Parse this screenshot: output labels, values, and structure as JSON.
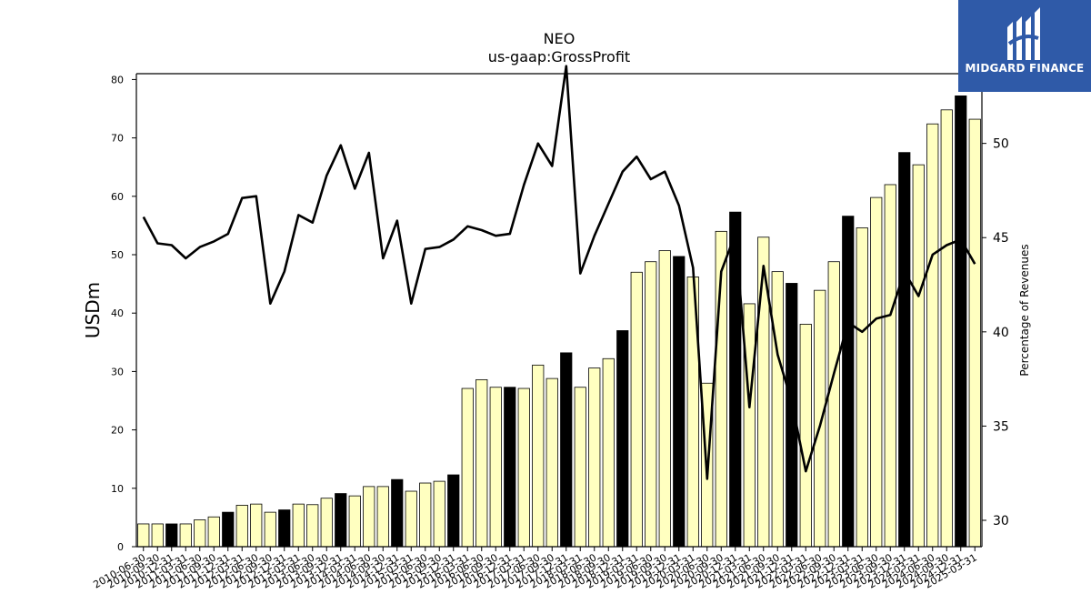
{
  "chart_data": {
    "type": "bar",
    "title": "NEO",
    "subtitle": "us-gaap:GrossProfit",
    "ylabel": "USDm",
    "y2label": "Percentage of Revenues",
    "ylim": [
      0,
      81
    ],
    "y2lim": [
      28.6,
      53.7
    ],
    "yticks": [
      0,
      10,
      20,
      30,
      40,
      50,
      60,
      70,
      80
    ],
    "y2ticks": [
      30,
      35,
      40,
      45,
      50
    ],
    "categories": [
      "2010-06-30",
      "2010-09-30",
      "2010-12-31",
      "2011-03-31",
      "2011-06-30",
      "2011-09-30",
      "2011-12-31",
      "2012-03-31",
      "2012-06-30",
      "2012-09-30",
      "2012-12-31",
      "2013-03-31",
      "2013-06-30",
      "2013-09-30",
      "2013-12-31",
      "2014-03-31",
      "2014-06-30",
      "2014-09-30",
      "2014-12-31",
      "2015-03-31",
      "2015-06-30",
      "2015-09-30",
      "2015-12-31",
      "2016-03-31",
      "2016-06-30",
      "2016-09-30",
      "2016-12-31",
      "2017-03-31",
      "2017-06-30",
      "2017-09-30",
      "2017-12-31",
      "2018-03-31",
      "2018-06-30",
      "2018-09-30",
      "2018-12-31",
      "2019-03-31",
      "2019-06-30",
      "2019-09-30",
      "2019-12-31",
      "2020-03-31",
      "2020-06-30",
      "2020-09-30",
      "2020-12-31",
      "2021-03-31",
      "2021-06-30",
      "2021-09-30",
      "2021-12-31",
      "2022-03-31",
      "2022-06-30",
      "2022-09-30",
      "2022-12-31",
      "2023-03-31",
      "2023-06-30",
      "2023-09-30",
      "2023-12-31",
      "2024-03-31",
      "2024-06-30",
      "2024-09-30",
      "2024-12-31",
      "2025-03-31"
    ],
    "series": [
      {
        "type": "bar",
        "values": [
          3.9,
          3.9,
          3.9,
          3.9,
          4.6,
          5.1,
          5.9,
          7.1,
          7.3,
          5.9,
          6.3,
          7.3,
          7.2,
          8.3,
          9.1,
          8.7,
          10.3,
          10.3,
          11.5,
          9.5,
          10.9,
          11.2,
          12.3,
          27.1,
          28.6,
          27.3,
          27.3,
          27.1,
          31.1,
          28.8,
          33.2,
          27.3,
          30.6,
          32.2,
          37.0,
          47.0,
          48.8,
          50.7,
          49.7,
          46.2,
          28.0,
          54.0,
          57.3,
          41.6,
          53.0,
          47.1,
          45.1,
          38.1,
          43.9,
          48.8,
          56.6,
          54.6,
          59.8,
          62.0,
          67.5,
          65.4,
          72.4,
          74.8,
          77.2,
          73.2
        ],
        "colors": {
          "normal": "#ffffc0",
          "highlight": "#000000"
        },
        "highlight_every": 4,
        "highlight_offset": 2
      },
      {
        "type": "line",
        "values": [
          46.1,
          44.7,
          44.6,
          43.9,
          44.5,
          44.8,
          45.2,
          47.1,
          47.2,
          41.5,
          43.2,
          46.2,
          45.8,
          48.3,
          49.9,
          47.6,
          49.5,
          43.9,
          45.9,
          41.5,
          44.4,
          44.5,
          44.9,
          45.6,
          45.4,
          45.1,
          45.2,
          47.8,
          50.0,
          48.8,
          54.1,
          43.1,
          45.1,
          46.8,
          48.5,
          49.3,
          48.1,
          48.5,
          46.7,
          43.4,
          32.2,
          43.2,
          45.2,
          36.0,
          43.5,
          38.8,
          36.3,
          32.6,
          35.0,
          37.8,
          40.5,
          40.0,
          40.7,
          40.9,
          43.2,
          41.9,
          44.1,
          44.6,
          44.9,
          43.6
        ],
        "color": "#000000"
      }
    ],
    "legend": "none",
    "grid": false
  },
  "logo": {
    "text": "MIDGARD FINANCE",
    "icon": "midgard-finance-logo-icon",
    "background": "#2f5aa8"
  }
}
